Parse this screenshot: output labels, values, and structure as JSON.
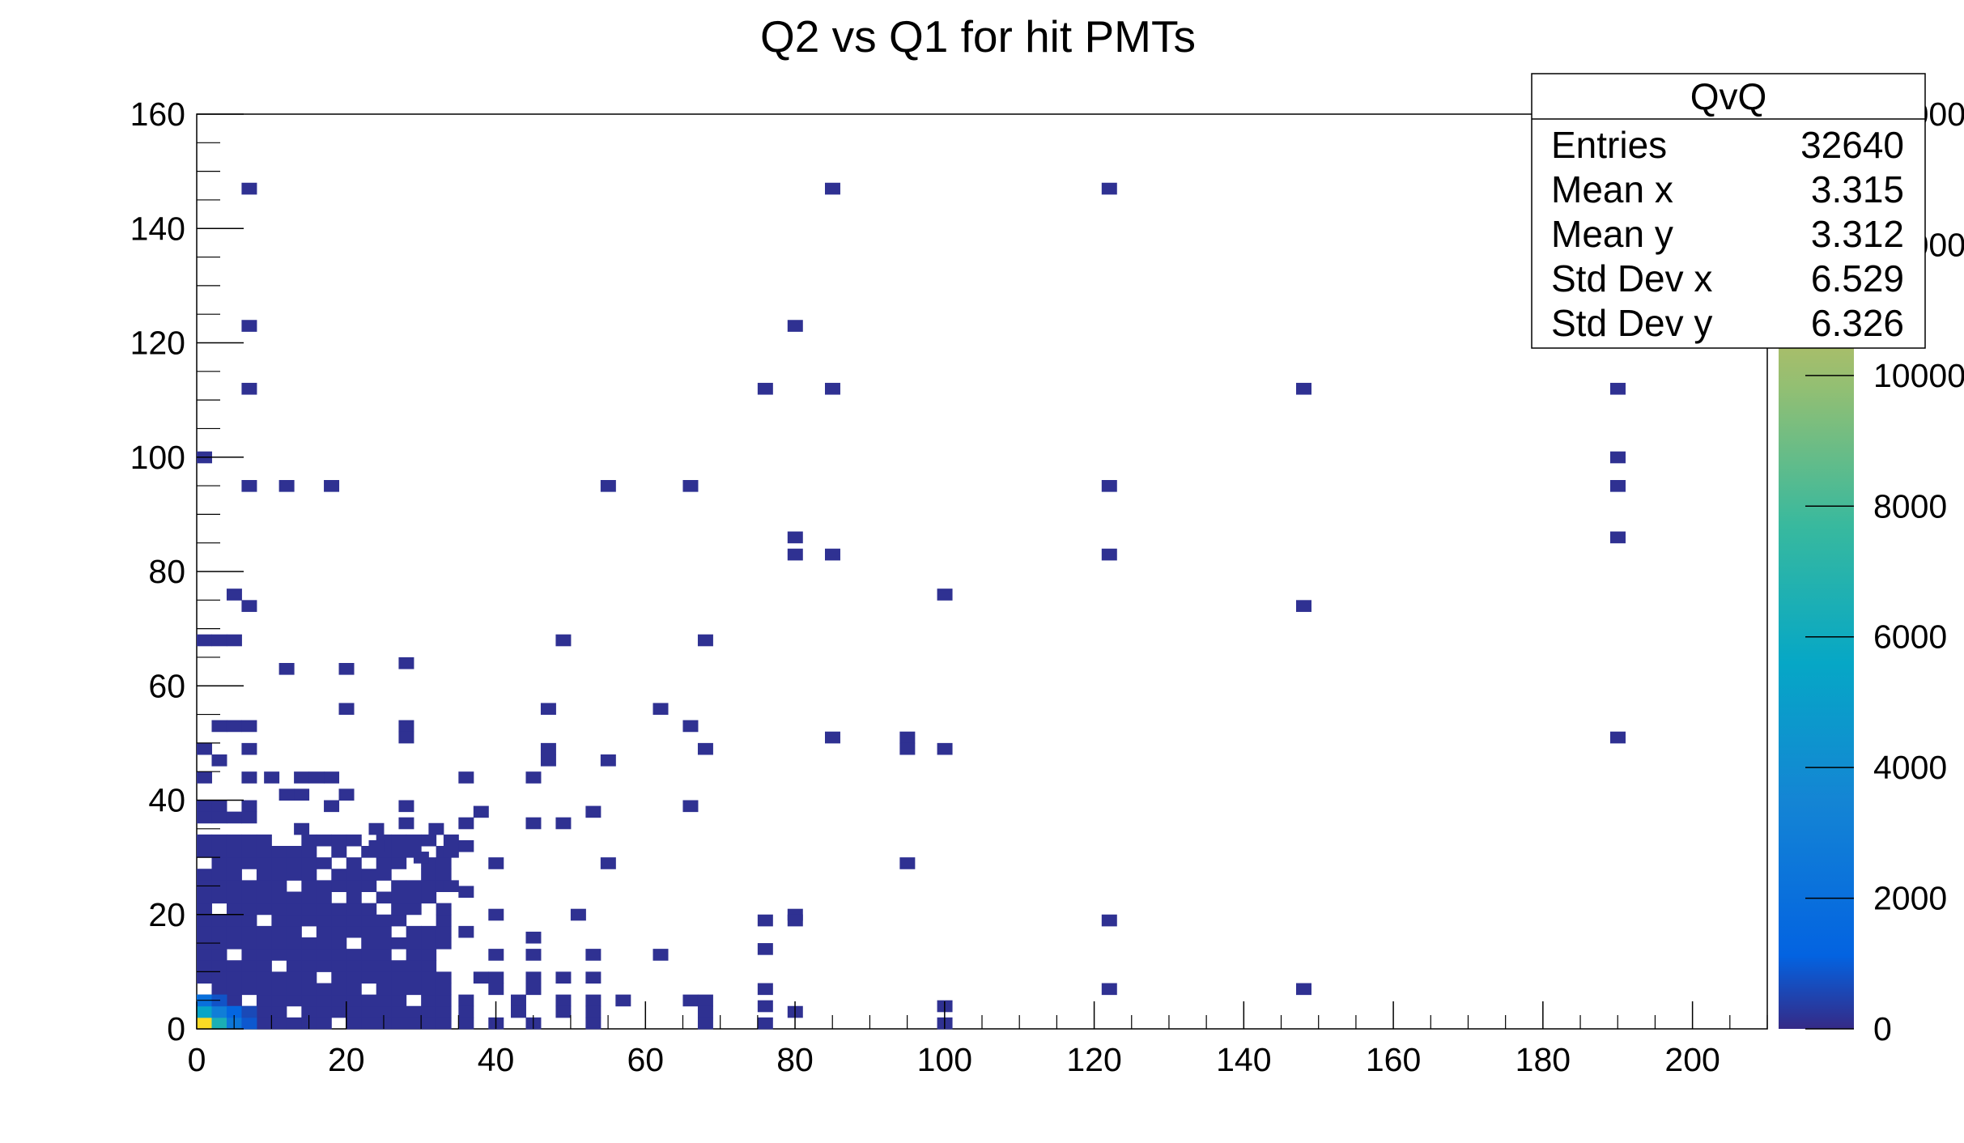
{
  "chart_data": {
    "type": "heatmap",
    "title": "Q2 vs Q1 for hit PMTs",
    "xlabel": "",
    "ylabel": "",
    "xlim": [
      0,
      210
    ],
    "ylim": [
      0,
      160
    ],
    "x_ticks": [
      "0",
      "20",
      "40",
      "60",
      "80",
      "100",
      "120",
      "140",
      "160",
      "180",
      "200"
    ],
    "y_ticks": [
      "0",
      "20",
      "40",
      "60",
      "80",
      "100",
      "120",
      "140",
      "160"
    ],
    "z_range": [
      0,
      14000
    ],
    "z_ticks": [
      "0",
      "2000",
      "4000",
      "6000",
      "8000",
      "10000",
      "12000",
      "14000"
    ],
    "palette": "kBird",
    "colors": {
      "low": "#352a87",
      "mid": "#0f5cdd",
      "high": "#f9fb0e",
      "bin_fill": "#2f3192"
    },
    "cells": [
      {
        "x": 1,
        "y": 1,
        "z": 13500
      },
      {
        "x": 3,
        "y": 1,
        "z": 6500
      },
      {
        "x": 1,
        "y": 3,
        "z": 5500
      },
      {
        "x": 3,
        "y": 3,
        "z": 3000
      },
      {
        "x": 5,
        "y": 1,
        "z": 2500
      },
      {
        "x": 1,
        "y": 5,
        "z": 2000
      },
      {
        "x": 5,
        "y": 3,
        "z": 1300
      },
      {
        "x": 7,
        "y": 1,
        "z": 900
      },
      {
        "x": 7,
        "y": 3,
        "z": 600
      },
      {
        "x": 3,
        "y": 5,
        "z": 800
      }
    ],
    "sparse_bins": [
      [
        7,
        147
      ],
      [
        85,
        147
      ],
      [
        122,
        147
      ],
      [
        7,
        123
      ],
      [
        80,
        123
      ],
      [
        7,
        112
      ],
      [
        76,
        112
      ],
      [
        85,
        112
      ],
      [
        148,
        112
      ],
      [
        190,
        112
      ],
      [
        1,
        100
      ],
      [
        190,
        100
      ],
      [
        7,
        95
      ],
      [
        12,
        95
      ],
      [
        18,
        95
      ],
      [
        55,
        95
      ],
      [
        66,
        95
      ],
      [
        122,
        95
      ],
      [
        190,
        95
      ],
      [
        80,
        86
      ],
      [
        190,
        86
      ],
      [
        80,
        83
      ],
      [
        85,
        83
      ],
      [
        122,
        83
      ],
      [
        5,
        76
      ],
      [
        100,
        76
      ],
      [
        7,
        74
      ],
      [
        148,
        74
      ],
      [
        1,
        68
      ],
      [
        3,
        68
      ],
      [
        5,
        68
      ],
      [
        49,
        68
      ],
      [
        68,
        68
      ],
      [
        12,
        63
      ],
      [
        20,
        63
      ],
      [
        28,
        64
      ],
      [
        20,
        56
      ],
      [
        47,
        56
      ],
      [
        62,
        56
      ],
      [
        3,
        53
      ],
      [
        5,
        53
      ],
      [
        7,
        53
      ],
      [
        28,
        53
      ],
      [
        66,
        53
      ],
      [
        28,
        51
      ],
      [
        85,
        51
      ],
      [
        95,
        51
      ],
      [
        190,
        51
      ],
      [
        1,
        49
      ],
      [
        7,
        49
      ],
      [
        47,
        49
      ],
      [
        68,
        49
      ],
      [
        95,
        49
      ],
      [
        100,
        49
      ],
      [
        3,
        47
      ],
      [
        47,
        47
      ],
      [
        55,
        47
      ],
      [
        1,
        44
      ],
      [
        7,
        44
      ],
      [
        10,
        44
      ],
      [
        14,
        44
      ],
      [
        16,
        44
      ],
      [
        18,
        44
      ],
      [
        36,
        44
      ],
      [
        45,
        44
      ],
      [
        12,
        41
      ],
      [
        14,
        41
      ],
      [
        20,
        41
      ],
      [
        1,
        39
      ],
      [
        3,
        39
      ],
      [
        7,
        39
      ],
      [
        18,
        39
      ],
      [
        28,
        39
      ],
      [
        38,
        38
      ],
      [
        53,
        38
      ],
      [
        66,
        39
      ],
      [
        1,
        37
      ],
      [
        3,
        37
      ],
      [
        5,
        37
      ],
      [
        7,
        37
      ],
      [
        28,
        36
      ],
      [
        36,
        36
      ],
      [
        45,
        36
      ],
      [
        49,
        36
      ],
      [
        14,
        35
      ],
      [
        24,
        35
      ],
      [
        32,
        35
      ],
      [
        34,
        33
      ],
      [
        36,
        32
      ],
      [
        24,
        32
      ],
      [
        34,
        31
      ],
      [
        30,
        30
      ],
      [
        40,
        29
      ],
      [
        55,
        29
      ],
      [
        95,
        29
      ],
      [
        34,
        25
      ],
      [
        36,
        24
      ],
      [
        40,
        20
      ],
      [
        51,
        20
      ],
      [
        80,
        20
      ],
      [
        80,
        19
      ],
      [
        76,
        19
      ],
      [
        122,
        19
      ],
      [
        36,
        17
      ],
      [
        45,
        16
      ],
      [
        45,
        13
      ],
      [
        40,
        13
      ],
      [
        53,
        13
      ],
      [
        62,
        13
      ],
      [
        76,
        14
      ],
      [
        38,
        9
      ],
      [
        40,
        9
      ],
      [
        45,
        9
      ],
      [
        49,
        9
      ],
      [
        53,
        9
      ],
      [
        40,
        7
      ],
      [
        45,
        7
      ],
      [
        76,
        7
      ],
      [
        122,
        7
      ],
      [
        148,
        7
      ],
      [
        36,
        5
      ],
      [
        43,
        5
      ],
      [
        49,
        5
      ],
      [
        53,
        5
      ],
      [
        57,
        5
      ],
      [
        66,
        5
      ],
      [
        68,
        5
      ],
      [
        76,
        4
      ],
      [
        100,
        4
      ],
      [
        36,
        3
      ],
      [
        43,
        3
      ],
      [
        49,
        3
      ],
      [
        53,
        3
      ],
      [
        68,
        3
      ],
      [
        80,
        3
      ],
      [
        36,
        1
      ],
      [
        40,
        1
      ],
      [
        45,
        1
      ],
      [
        53,
        1
      ],
      [
        68,
        1
      ],
      [
        76,
        1
      ],
      [
        100,
        1
      ]
    ],
    "dense_region": {
      "x_max": 34,
      "y_max": 34
    },
    "stats_box": {
      "title": "QvQ",
      "rows": [
        {
          "label": "Entries",
          "value": "32640"
        },
        {
          "label": "Mean x",
          "value": "3.315"
        },
        {
          "label": "Mean y",
          "value": "3.312"
        },
        {
          "label": "Std Dev x",
          "value": "6.529"
        },
        {
          "label": "Std Dev y",
          "value": "6.326"
        }
      ]
    }
  }
}
